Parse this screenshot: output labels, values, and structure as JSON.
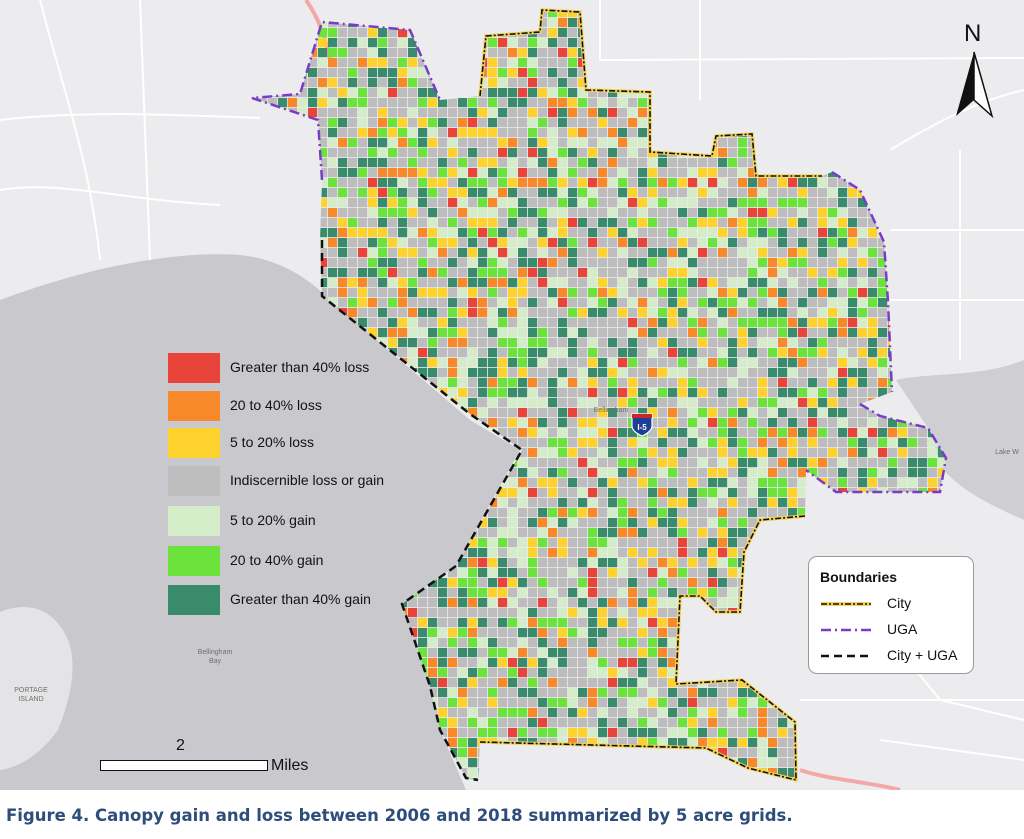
{
  "caption": "Figure 4. Canopy gain and loss between 2006 and 2018 summarized by 5 acre grids.",
  "north_label": "N",
  "scale": {
    "number": "2",
    "unit": "Miles"
  },
  "highway_shield": "I-5",
  "places": {
    "city": "Bellingham",
    "bay_line1": "Bellingham",
    "bay_line2": "Bay",
    "island_line1": "PORTAGE",
    "island_line2": "ISLAND",
    "lake": "Lake W"
  },
  "canopy_legend": [
    {
      "label": "Greater than 40% loss",
      "color": "#e8443a"
    },
    {
      "label": "20 to 40% loss",
      "color": "#f7892b"
    },
    {
      "label": "5 to 20% loss",
      "color": "#fdd22d"
    },
    {
      "label": "Indiscernible loss or gain",
      "color": "#bdbdbd"
    },
    {
      "label": "5 to 20% gain",
      "color": "#d4edc8"
    },
    {
      "label": "20 to 40% gain",
      "color": "#6ce33c"
    },
    {
      "label": "Greater than 40% gain",
      "color": "#3a8a6c"
    }
  ],
  "boundaries_legend": {
    "title": "Boundaries",
    "items": [
      {
        "label": "City",
        "style": "dash-dot",
        "color": "#111111",
        "halo": "#f2d25c"
      },
      {
        "label": "UGA",
        "style": "dash-dot",
        "color": "#7a3cc8",
        "halo": "#ffffff"
      },
      {
        "label": "City + UGA",
        "style": "dashed",
        "color": "#111111"
      }
    ]
  },
  "colors": {
    "water": "#c8c8cc",
    "land": "#ececee",
    "road": "#ffffff",
    "highway": "#f3a8a8"
  }
}
